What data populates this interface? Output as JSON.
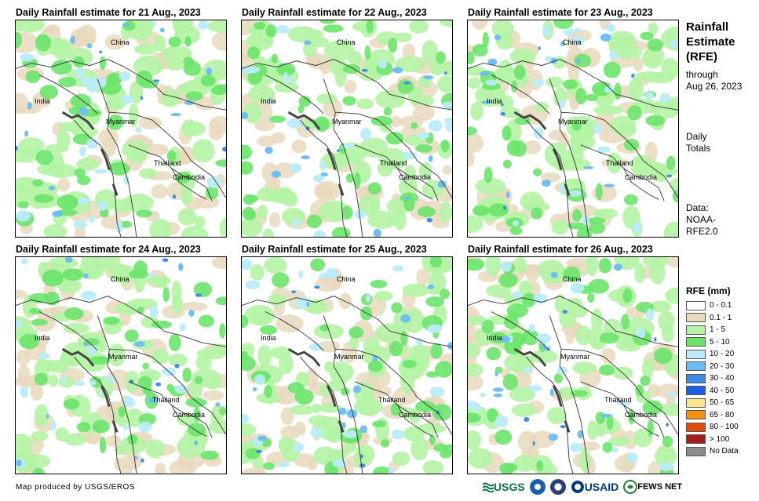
{
  "panels": [
    {
      "title": "Daily Rainfall estimate for 21 Aug., 2023",
      "labels": {
        "china": "China",
        "india": "India",
        "myanmar": "Myanmar",
        "thailand": "Thailand",
        "cambodia": "Cambodia"
      }
    },
    {
      "title": "Daily Rainfall estimate for 22 Aug., 2023",
      "labels": {
        "china": "China",
        "india": "India",
        "myanmar": "Myanmar",
        "thailand": "Thailand",
        "cambodia": "Cambodia"
      }
    },
    {
      "title": "Daily Rainfall estimate for 23 Aug., 2023",
      "labels": {
        "china": "China",
        "india": "India",
        "myanmar": "Myanmar",
        "thailand": "Thailand",
        "cambodia": "Cambodia"
      }
    },
    {
      "title": "Daily Rainfall estimate for 24 Aug., 2023",
      "labels": {
        "china": "China",
        "india": "India",
        "myanmar": "Myanmar",
        "thailand": "Thailand",
        "cambodia": "Cambodia"
      }
    },
    {
      "title": "Daily Rainfall estimate for 25 Aug., 2023",
      "labels": {
        "china": "China",
        "india": "India",
        "myanmar": "Myanmar",
        "thailand": "Thailand",
        "cambodia": "Cambodia"
      }
    },
    {
      "title": "Daily Rainfall estimate for 26 Aug., 2023",
      "labels": {
        "china": "China",
        "india": "India",
        "myanmar": "Myanmar",
        "thailand": "Thailand",
        "cambodia": "Cambodia"
      }
    }
  ],
  "sidebar": {
    "title_line1": "Rainfall",
    "title_line2": "Estimate",
    "title_line3": "(RFE)",
    "through_label": "through",
    "through_date": "Aug 26, 2023",
    "daily_line1": "Daily",
    "daily_line2": "Totals",
    "data_line1": "Data:",
    "data_line2": "NOAA-",
    "data_line3": "RFE2.0"
  },
  "legend": {
    "title": "RFE (mm)",
    "items": [
      {
        "label": "0 - 0.1",
        "color": "#ffffff"
      },
      {
        "label": "0.1 - 1",
        "color": "#e9d9bd"
      },
      {
        "label": "1 - 5",
        "color": "#b4f4a4"
      },
      {
        "label": "5 - 10",
        "color": "#6ce46c"
      },
      {
        "label": "10 - 20",
        "color": "#b9ecf8"
      },
      {
        "label": "20 - 30",
        "color": "#6cbcf4"
      },
      {
        "label": "30 - 40",
        "color": "#3c8ce8"
      },
      {
        "label": "40 - 50",
        "color": "#1c5ce0"
      },
      {
        "label": "50 - 65",
        "color": "#fce48c"
      },
      {
        "label": "65 - 80",
        "color": "#f4940c"
      },
      {
        "label": "80 - 100",
        "color": "#e44c0c"
      },
      {
        "label": "> 100",
        "color": "#a41c1c"
      },
      {
        "label": "No Data",
        "color": "#8c8c8c"
      }
    ]
  },
  "footer": {
    "credit": "Map produced by USGS/EROS",
    "logo_usgs": "USGS",
    "logo_usaid": "USAID",
    "logo_fewsnet": "FEWS NET"
  }
}
